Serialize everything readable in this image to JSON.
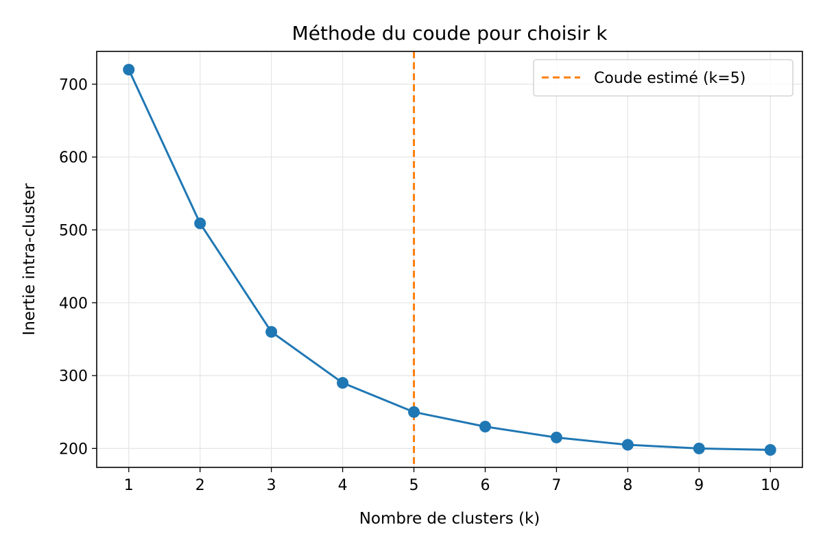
{
  "chart_data": {
    "type": "line",
    "title": "Méthode du coude pour choisir k",
    "xlabel": "Nombre de clusters (k)",
    "ylabel": "Inertie intra-cluster",
    "x": [
      1,
      2,
      3,
      4,
      5,
      6,
      7,
      8,
      9,
      10
    ],
    "xticks": [
      1,
      2,
      3,
      4,
      5,
      6,
      7,
      8,
      9,
      10
    ],
    "yticks": [
      200,
      300,
      400,
      500,
      600,
      700
    ],
    "xlim": [
      0.55,
      10.45
    ],
    "ylim": [
      174,
      745
    ],
    "grid": true,
    "legend_position": "top-right",
    "series": [
      {
        "values": [
          720,
          509,
          360,
          290,
          250,
          230,
          215,
          205,
          200,
          198
        ],
        "color": "#1f77b4",
        "marker": "circle"
      }
    ],
    "vline": {
      "x": 5,
      "label": "Coude estimé (k=5)",
      "color": "#ff7f0e",
      "style": "dashed"
    }
  }
}
